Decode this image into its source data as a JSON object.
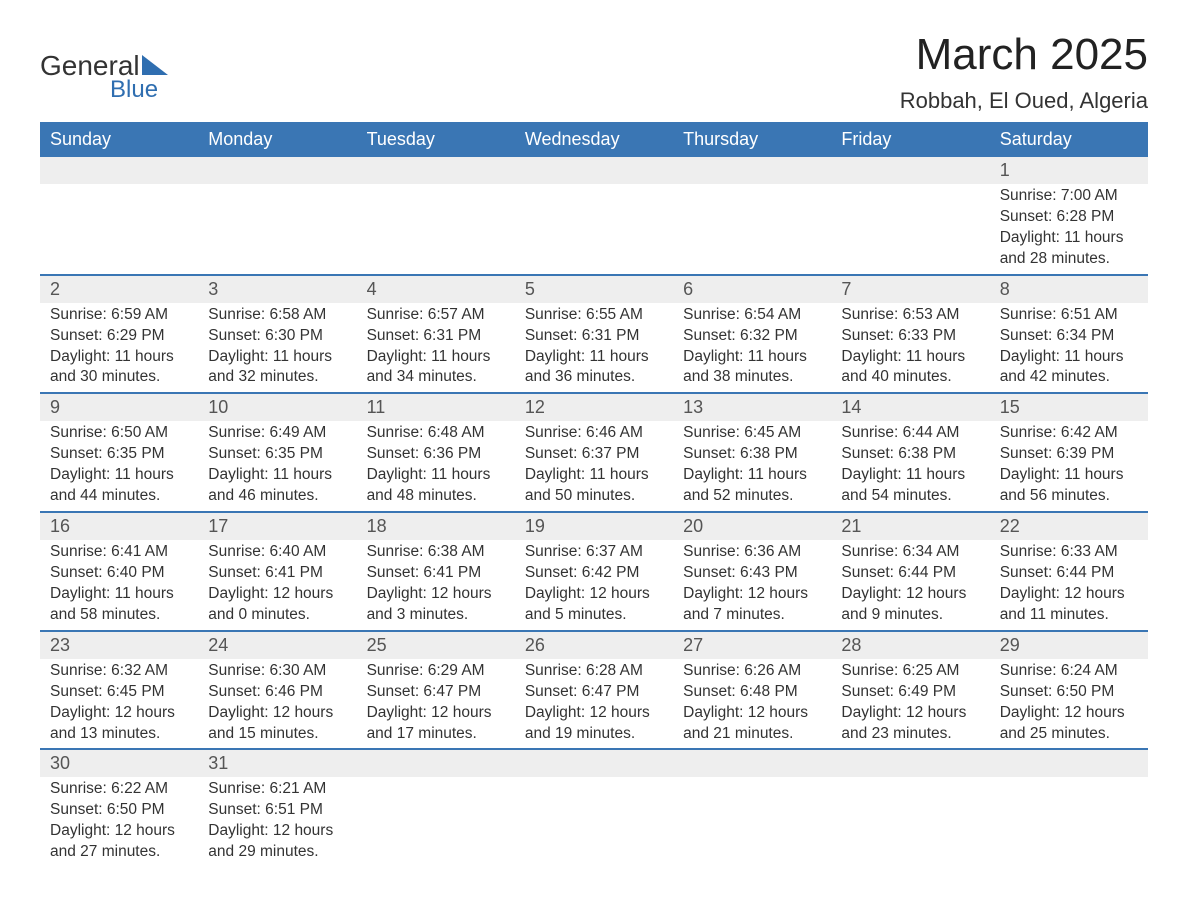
{
  "logo": {
    "textTop": "General",
    "textBottom": "Blue",
    "shapeColor": "#2f6eb0"
  },
  "title": "March 2025",
  "location": "Robbah, El Oued, Algeria",
  "colors": {
    "headerBg": "#3a76b4",
    "headerText": "#ffffff",
    "dayNumBg": "#eeeeee",
    "rowBorder": "#3a76b4",
    "bodyText": "#333333"
  },
  "dayHeaders": [
    "Sunday",
    "Monday",
    "Tuesday",
    "Wednesday",
    "Thursday",
    "Friday",
    "Saturday"
  ],
  "weeks": [
    [
      null,
      null,
      null,
      null,
      null,
      null,
      {
        "num": "1",
        "sunrise": "7:00 AM",
        "sunset": "6:28 PM",
        "daylight": "11 hours and 28 minutes."
      }
    ],
    [
      {
        "num": "2",
        "sunrise": "6:59 AM",
        "sunset": "6:29 PM",
        "daylight": "11 hours and 30 minutes."
      },
      {
        "num": "3",
        "sunrise": "6:58 AM",
        "sunset": "6:30 PM",
        "daylight": "11 hours and 32 minutes."
      },
      {
        "num": "4",
        "sunrise": "6:57 AM",
        "sunset": "6:31 PM",
        "daylight": "11 hours and 34 minutes."
      },
      {
        "num": "5",
        "sunrise": "6:55 AM",
        "sunset": "6:31 PM",
        "daylight": "11 hours and 36 minutes."
      },
      {
        "num": "6",
        "sunrise": "6:54 AM",
        "sunset": "6:32 PM",
        "daylight": "11 hours and 38 minutes."
      },
      {
        "num": "7",
        "sunrise": "6:53 AM",
        "sunset": "6:33 PM",
        "daylight": "11 hours and 40 minutes."
      },
      {
        "num": "8",
        "sunrise": "6:51 AM",
        "sunset": "6:34 PM",
        "daylight": "11 hours and 42 minutes."
      }
    ],
    [
      {
        "num": "9",
        "sunrise": "6:50 AM",
        "sunset": "6:35 PM",
        "daylight": "11 hours and 44 minutes."
      },
      {
        "num": "10",
        "sunrise": "6:49 AM",
        "sunset": "6:35 PM",
        "daylight": "11 hours and 46 minutes."
      },
      {
        "num": "11",
        "sunrise": "6:48 AM",
        "sunset": "6:36 PM",
        "daylight": "11 hours and 48 minutes."
      },
      {
        "num": "12",
        "sunrise": "6:46 AM",
        "sunset": "6:37 PM",
        "daylight": "11 hours and 50 minutes."
      },
      {
        "num": "13",
        "sunrise": "6:45 AM",
        "sunset": "6:38 PM",
        "daylight": "11 hours and 52 minutes."
      },
      {
        "num": "14",
        "sunrise": "6:44 AM",
        "sunset": "6:38 PM",
        "daylight": "11 hours and 54 minutes."
      },
      {
        "num": "15",
        "sunrise": "6:42 AM",
        "sunset": "6:39 PM",
        "daylight": "11 hours and 56 minutes."
      }
    ],
    [
      {
        "num": "16",
        "sunrise": "6:41 AM",
        "sunset": "6:40 PM",
        "daylight": "11 hours and 58 minutes."
      },
      {
        "num": "17",
        "sunrise": "6:40 AM",
        "sunset": "6:41 PM",
        "daylight": "12 hours and 0 minutes."
      },
      {
        "num": "18",
        "sunrise": "6:38 AM",
        "sunset": "6:41 PM",
        "daylight": "12 hours and 3 minutes."
      },
      {
        "num": "19",
        "sunrise": "6:37 AM",
        "sunset": "6:42 PM",
        "daylight": "12 hours and 5 minutes."
      },
      {
        "num": "20",
        "sunrise": "6:36 AM",
        "sunset": "6:43 PM",
        "daylight": "12 hours and 7 minutes."
      },
      {
        "num": "21",
        "sunrise": "6:34 AM",
        "sunset": "6:44 PM",
        "daylight": "12 hours and 9 minutes."
      },
      {
        "num": "22",
        "sunrise": "6:33 AM",
        "sunset": "6:44 PM",
        "daylight": "12 hours and 11 minutes."
      }
    ],
    [
      {
        "num": "23",
        "sunrise": "6:32 AM",
        "sunset": "6:45 PM",
        "daylight": "12 hours and 13 minutes."
      },
      {
        "num": "24",
        "sunrise": "6:30 AM",
        "sunset": "6:46 PM",
        "daylight": "12 hours and 15 minutes."
      },
      {
        "num": "25",
        "sunrise": "6:29 AM",
        "sunset": "6:47 PM",
        "daylight": "12 hours and 17 minutes."
      },
      {
        "num": "26",
        "sunrise": "6:28 AM",
        "sunset": "6:47 PM",
        "daylight": "12 hours and 19 minutes."
      },
      {
        "num": "27",
        "sunrise": "6:26 AM",
        "sunset": "6:48 PM",
        "daylight": "12 hours and 21 minutes."
      },
      {
        "num": "28",
        "sunrise": "6:25 AM",
        "sunset": "6:49 PM",
        "daylight": "12 hours and 23 minutes."
      },
      {
        "num": "29",
        "sunrise": "6:24 AM",
        "sunset": "6:50 PM",
        "daylight": "12 hours and 25 minutes."
      }
    ],
    [
      {
        "num": "30",
        "sunrise": "6:22 AM",
        "sunset": "6:50 PM",
        "daylight": "12 hours and 27 minutes."
      },
      {
        "num": "31",
        "sunrise": "6:21 AM",
        "sunset": "6:51 PM",
        "daylight": "12 hours and 29 minutes."
      },
      null,
      null,
      null,
      null,
      null
    ]
  ],
  "labels": {
    "sunrise": "Sunrise: ",
    "sunset": "Sunset: ",
    "daylight": "Daylight: "
  }
}
